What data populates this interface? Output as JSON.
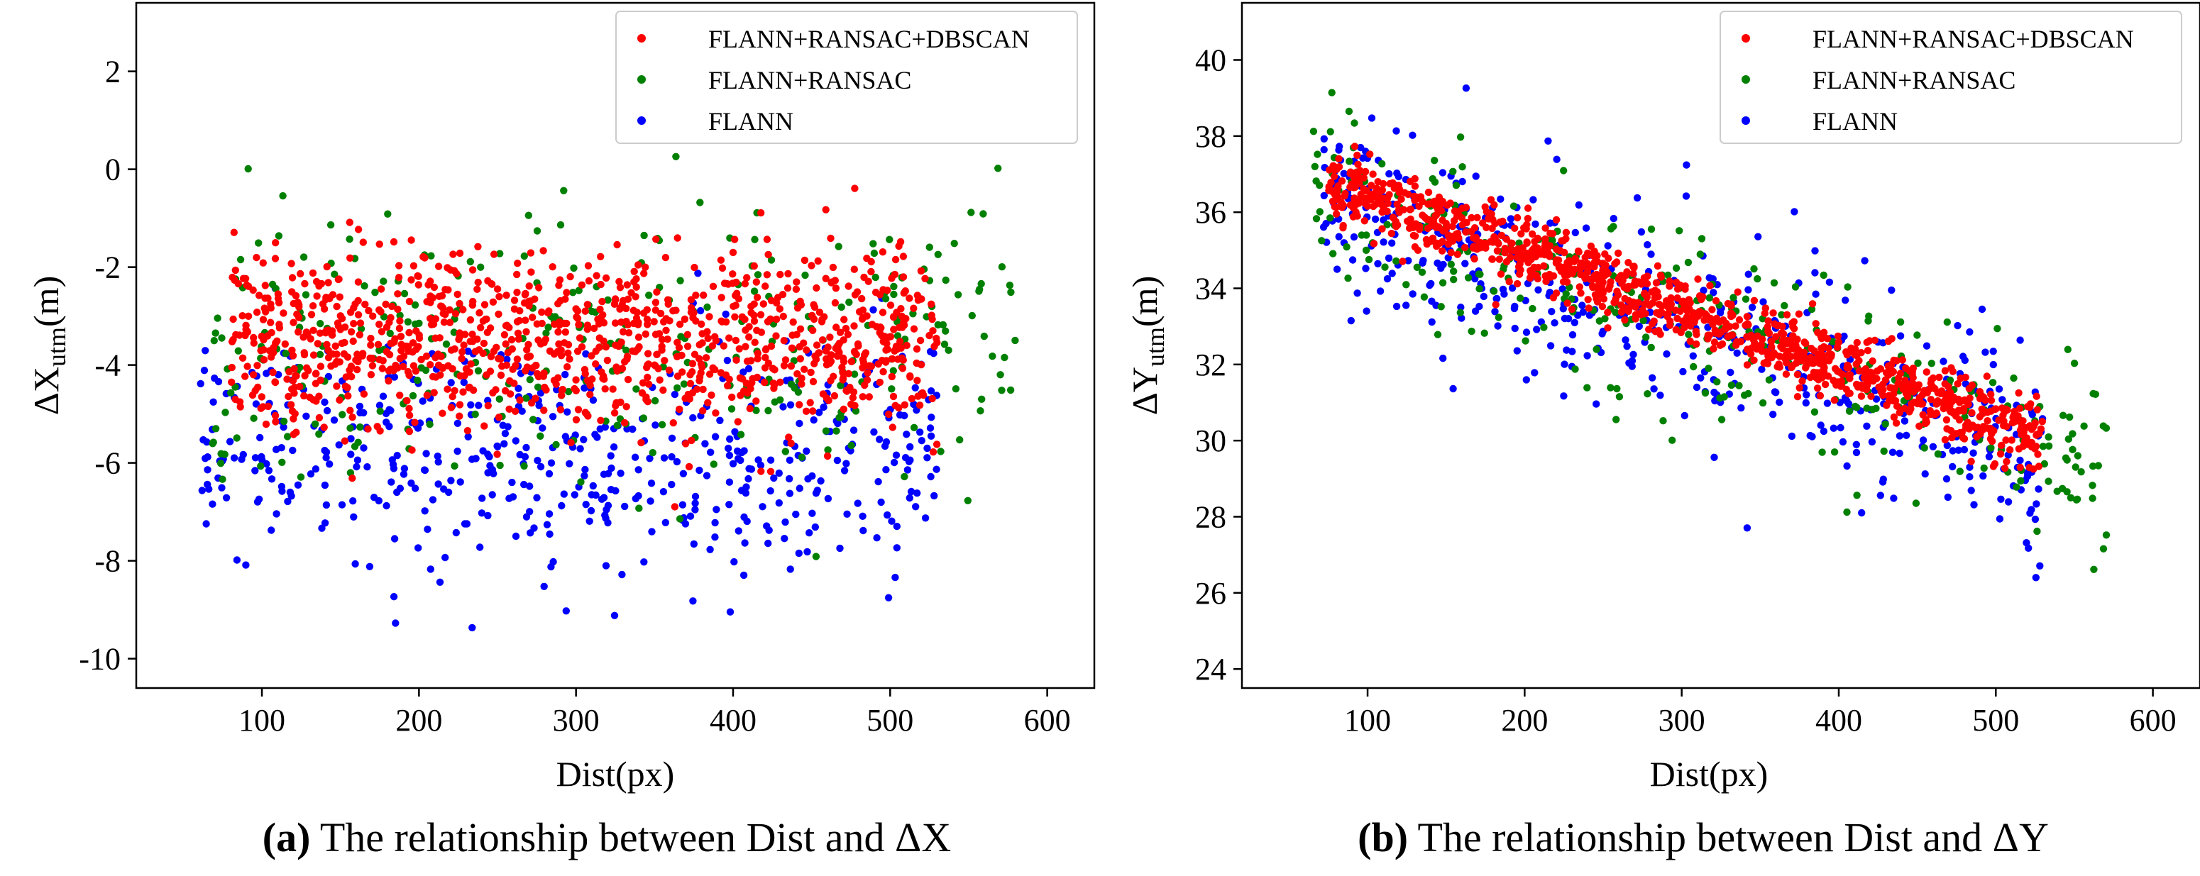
{
  "chart_data": [
    {
      "type": "scatter",
      "panel": "a",
      "xlabel": "Dist(px)",
      "ylabel_main": "ΔX",
      "ylabel_sub": "utm",
      "ylabel_tail": "(m)",
      "xlim": [
        20,
        630
      ],
      "ylim": [
        -10.6,
        3.4
      ],
      "xticks": [
        100,
        200,
        300,
        400,
        500,
        600
      ],
      "yticks": [
        2,
        0,
        -2,
        -4,
        -6,
        -8,
        -10
      ],
      "grid": false,
      "legend_position": "top-right",
      "caption_bold": "(a)",
      "caption_text": " The relationship between Dist and ΔX",
      "series": [
        {
          "name": "FLANN+RANSAC+DBSCAN",
          "color": "#ff0000",
          "x_range": [
            80,
            530
          ],
          "center": -3.5,
          "slope": 0,
          "spread": 0.9,
          "count": 1100,
          "seed": 11
        },
        {
          "name": "FLANN+RANSAC",
          "color": "#008000",
          "x_range": [
            65,
            580
          ],
          "center": -3.8,
          "slope": 0,
          "spread": 1.4,
          "count": 320,
          "seed": 23
        },
        {
          "name": "FLANN",
          "color": "#0000ff",
          "x_range": [
            60,
            530
          ],
          "center": -5.8,
          "slope": 0,
          "spread": 1.2,
          "count": 520,
          "seed": 37
        }
      ]
    },
    {
      "type": "scatter",
      "panel": "b",
      "xlabel": "Dist(px)",
      "ylabel_main": "ΔY",
      "ylabel_sub": "utm",
      "ylabel_tail": "(m)",
      "xlim": [
        20,
        630
      ],
      "ylim": [
        23.5,
        41.5
      ],
      "xticks": [
        100,
        200,
        300,
        400,
        500,
        600
      ],
      "yticks": [
        40,
        38,
        36,
        34,
        32,
        30,
        28,
        26,
        24
      ],
      "grid": false,
      "legend_position": "top-right",
      "caption_bold": "(b)",
      "caption_text": " The relationship between Dist and ΔY",
      "series": [
        {
          "name": "FLANN+RANSAC+DBSCAN",
          "color": "#ff0000",
          "x_range": [
            75,
            530
          ],
          "center": 36.8,
          "slope": -0.0148,
          "spread": 0.45,
          "count": 1100,
          "seed": 41
        },
        {
          "name": "FLANN+RANSAC",
          "color": "#008000",
          "x_range": [
            65,
            580
          ],
          "center": 36.6,
          "slope": -0.0148,
          "spread": 1.2,
          "count": 320,
          "seed": 53
        },
        {
          "name": "FLANN",
          "color": "#0000ff",
          "x_range": [
            70,
            530
          ],
          "center": 36.4,
          "slope": -0.015,
          "spread": 1.3,
          "count": 520,
          "seed": 67
        }
      ]
    }
  ]
}
